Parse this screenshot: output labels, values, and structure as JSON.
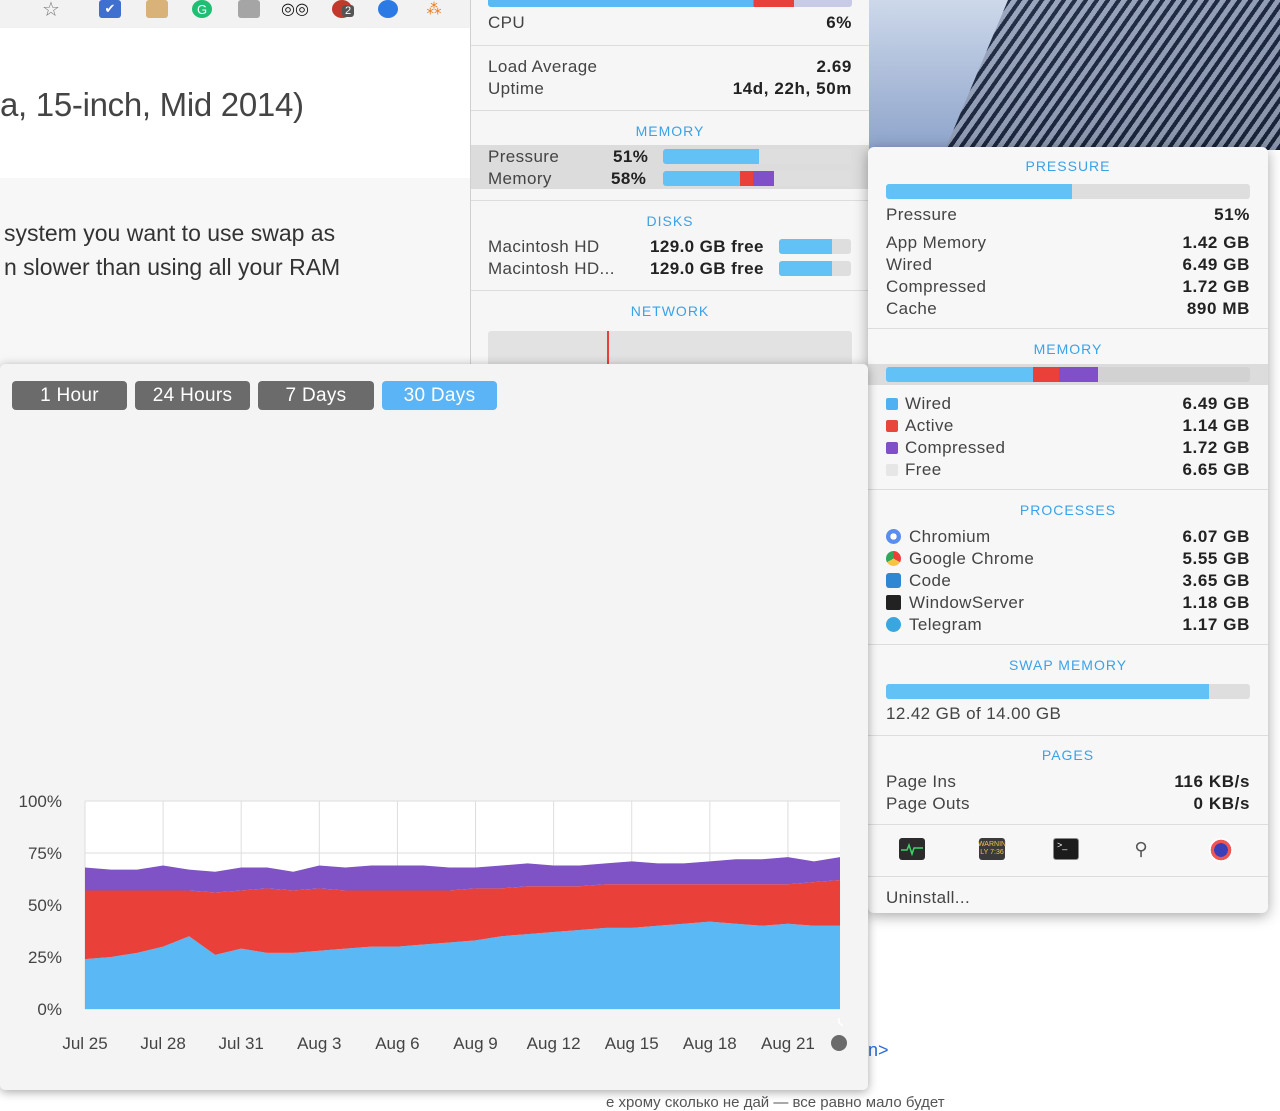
{
  "browser": {
    "tab_badge": "2",
    "page_title": "a, 15-inch, Mid 2014)",
    "paragraph_lines": [
      " system you want to use swap as",
      "n slower than using all your RAM"
    ],
    "link_fragment": "n>",
    "bottom_fragment": "е хрому сколько не дай — все равно мало будет"
  },
  "stats": {
    "cpu": {
      "label": "CPU",
      "value": "6%"
    },
    "load_average": {
      "label": "Load Average",
      "value": "2.69"
    },
    "uptime": {
      "label": "Uptime",
      "value": "14d, 22h, 50m"
    },
    "memory_title": "MEMORY",
    "pressure": {
      "label": "Pressure",
      "value": "51%",
      "fraction": 0.51
    },
    "memory": {
      "label": "Memory",
      "value": "58%",
      "wired_fraction": 0.41,
      "active_fraction": 0.07,
      "compressed_fraction": 0.11
    },
    "disks_title": "DISKS",
    "disks": [
      {
        "name": "Macintosh HD",
        "free": "129.0 GB free",
        "fraction": 0.74
      },
      {
        "name": "Macintosh HD...",
        "free": "129.0 GB free",
        "fraction": 0.74
      }
    ],
    "network_title": "NETWORK"
  },
  "popover": {
    "pressure_title": "PRESSURE",
    "pressure_fraction": 0.51,
    "pressure": {
      "label": "Pressure",
      "value": "51%"
    },
    "details": [
      {
        "label": "App Memory",
        "value": "1.42 GB"
      },
      {
        "label": "Wired",
        "value": "6.49 GB"
      },
      {
        "label": "Compressed",
        "value": "1.72 GB"
      },
      {
        "label": "Cache",
        "value": "890 MB"
      }
    ],
    "memory_title": "MEMORY",
    "memory_bar": {
      "wired": 0.405,
      "active": 0.071,
      "compressed": 0.107
    },
    "legend": [
      {
        "label": "Wired",
        "value": "6.49 GB",
        "color": "#4fb1f1"
      },
      {
        "label": "Active",
        "value": "1.14 GB",
        "color": "#e8463b"
      },
      {
        "label": "Compressed",
        "value": "1.72 GB",
        "color": "#8050c9"
      },
      {
        "label": "Free",
        "value": "6.65 GB",
        "color": "#e6e6e6"
      }
    ],
    "processes_title": "PROCESSES",
    "processes": [
      {
        "name": "Chromium",
        "value": "6.07 GB",
        "icon": "chromium-icon"
      },
      {
        "name": "Google Chrome",
        "value": "5.55 GB",
        "icon": "chrome-icon"
      },
      {
        "name": "Code",
        "value": "3.65 GB",
        "icon": "vscode-icon"
      },
      {
        "name": "WindowServer",
        "value": "1.18 GB",
        "icon": "windowserver-icon"
      },
      {
        "name": "Telegram",
        "value": "1.17 GB",
        "icon": "telegram-icon"
      }
    ],
    "swap_title": "SWAP MEMORY",
    "swap_fraction": 0.887,
    "swap_text": "12.42 GB of 14.00 GB",
    "pages_title": "PAGES",
    "page_ins": {
      "label": "Page Ins",
      "value": "116 KB/s"
    },
    "page_outs": {
      "label": "Page Outs",
      "value": "0 KB/s"
    },
    "toolbar_icons": [
      "activity-monitor-icon",
      "console-icon",
      "terminal-icon",
      "system-info-icon",
      "istat-icon"
    ],
    "console_icon_text": "WARNIN\nLY 7:36",
    "uninstall_label": "Uninstall..."
  },
  "chart_window": {
    "ranges": [
      {
        "label": "1 Hour",
        "active": false
      },
      {
        "label": "24 Hours",
        "active": false
      },
      {
        "label": "7 Days",
        "active": false
      },
      {
        "label": "30 Days",
        "active": true
      }
    ]
  },
  "chart_data": {
    "type": "area",
    "stacked": true,
    "title": "",
    "xlabel": "",
    "ylabel": "",
    "ylim": [
      0,
      100
    ],
    "y_ticks": [
      "0%",
      "25%",
      "50%",
      "75%",
      "100%"
    ],
    "x_ticks": [
      "Jul 25",
      "Jul 28",
      "Jul 31",
      "Aug 3",
      "Aug 6",
      "Aug 9",
      "Aug 12",
      "Aug 15",
      "Aug 18",
      "Aug 21"
    ],
    "x": [
      "Jul 25",
      "Jul 26",
      "Jul 27",
      "Jul 28",
      "Jul 29",
      "Jul 30",
      "Jul 31",
      "Aug 1",
      "Aug 2",
      "Aug 3",
      "Aug 4",
      "Aug 5",
      "Aug 6",
      "Aug 7",
      "Aug 8",
      "Aug 9",
      "Aug 10",
      "Aug 11",
      "Aug 12",
      "Aug 13",
      "Aug 14",
      "Aug 15",
      "Aug 16",
      "Aug 17",
      "Aug 18",
      "Aug 19",
      "Aug 20",
      "Aug 21",
      "Aug 22",
      "Aug 23"
    ],
    "series": [
      {
        "color": "#5ab8f5",
        "values": [
          24,
          25,
          27,
          30,
          35,
          26,
          29,
          27,
          27,
          28,
          29,
          30,
          30,
          31,
          32,
          33,
          35,
          36,
          37,
          38,
          39,
          39,
          40,
          41,
          42,
          41,
          40,
          41,
          40,
          40
        ]
      },
      {
        "color": "#e9403a",
        "values": [
          33,
          32,
          30,
          27,
          22,
          30,
          28,
          31,
          30,
          30,
          28,
          27,
          27,
          26,
          25,
          25,
          23,
          23,
          22,
          21,
          21,
          21,
          20,
          19,
          18,
          19,
          20,
          19,
          21,
          22
        ]
      },
      {
        "color": "#7f52c6",
        "values": [
          11,
          10,
          10,
          12,
          10,
          10,
          11,
          10,
          9,
          11,
          11,
          12,
          12,
          12,
          11,
          10,
          11,
          11,
          10,
          10,
          10,
          11,
          10,
          10,
          11,
          12,
          12,
          13,
          10,
          11
        ]
      }
    ]
  }
}
